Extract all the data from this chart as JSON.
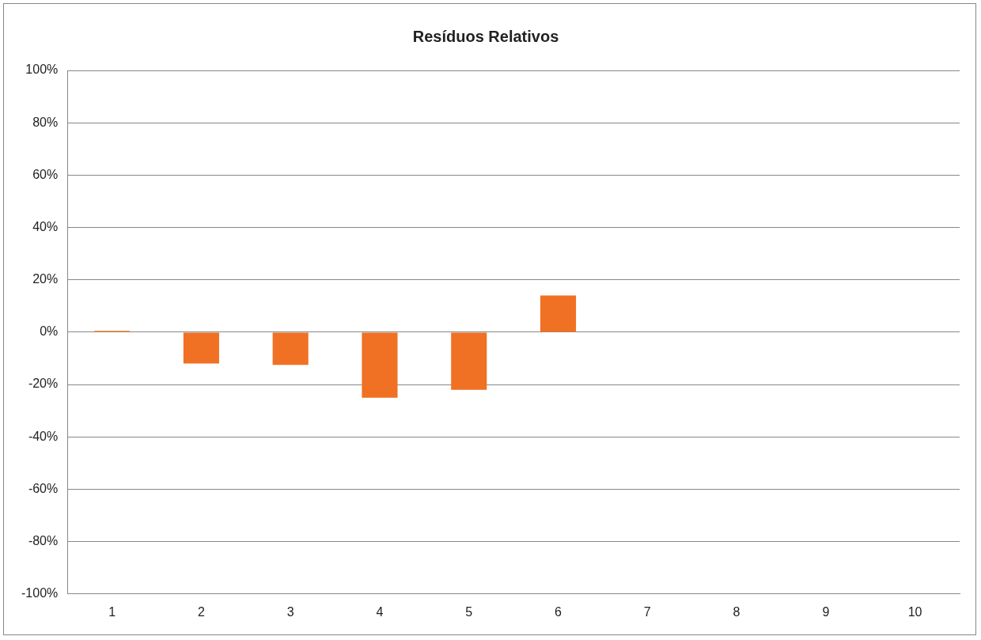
{
  "chart_data": {
    "type": "bar",
    "title": "Resíduos Relativos",
    "categories": [
      "1",
      "2",
      "3",
      "4",
      "5",
      "6",
      "7",
      "8",
      "9",
      "10"
    ],
    "series": [
      {
        "color": "#f07024",
        "values": [
          0.5,
          -12,
          -12.5,
          -25,
          -22,
          14,
          0,
          0,
          0,
          0
        ]
      }
    ],
    "ylim": [
      -100,
      100
    ],
    "yticks": [
      {
        "value": -100,
        "label": "-100%"
      },
      {
        "value": -80,
        "label": "-80%"
      },
      {
        "value": -60,
        "label": "-60%"
      },
      {
        "value": -40,
        "label": "-40%"
      },
      {
        "value": -20,
        "label": "-20%"
      },
      {
        "value": 0,
        "label": "0%"
      },
      {
        "value": 20,
        "label": "20%"
      },
      {
        "value": 40,
        "label": "40%"
      },
      {
        "value": 60,
        "label": "60%"
      },
      {
        "value": 80,
        "label": "80%"
      },
      {
        "value": 100,
        "label": "100%"
      }
    ],
    "grid": "y",
    "legend": false
  }
}
